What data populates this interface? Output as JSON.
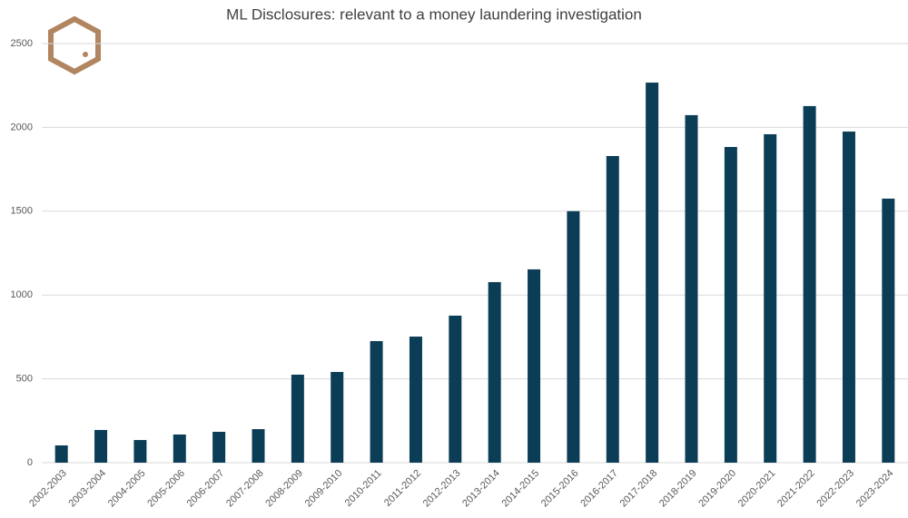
{
  "chart_data": {
    "type": "bar",
    "title": "ML Disclosures: relevant to a money laundering investigation",
    "categories": [
      "2002-2003",
      "2003-2004",
      "2004-2005",
      "2005-2006",
      "2006-2007",
      "2007-2008",
      "2008-2009",
      "2009-2010",
      "2010-2011",
      "2011-2012",
      "2012-2013",
      "2013-2014",
      "2014-2015",
      "2015-2016",
      "2016-2017",
      "2017-2018",
      "2018-2019",
      "2019-2020",
      "2020-2021",
      "2021-2022",
      "2022-2023",
      "2023-2024"
    ],
    "values": [
      103,
      195,
      135,
      168,
      184,
      200,
      525,
      541,
      725,
      752,
      877,
      1077,
      1153,
      1500,
      1829,
      2267,
      2073,
      1883,
      1959,
      2127,
      1975,
      1575
    ],
    "color": "#0b3e56",
    "ylim": [
      0,
      2500
    ],
    "yticks": [
      0,
      500,
      1000,
      1500,
      2000,
      2500
    ],
    "grid": true
  }
}
